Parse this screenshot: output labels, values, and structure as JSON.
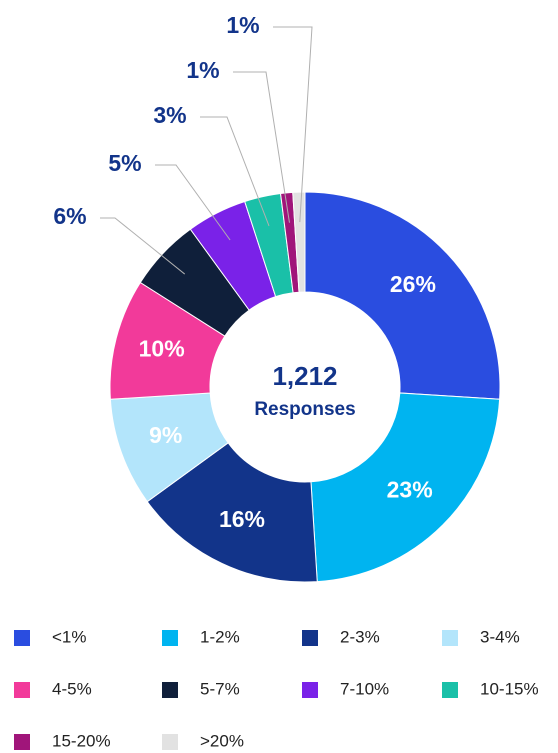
{
  "chart_data": {
    "type": "donut",
    "categories": [
      "<1%",
      "1-2%",
      "2-3%",
      "3-4%",
      "4-5%",
      "5-7%",
      "7-10%",
      "10-15%",
      "15-20%",
      ">20%"
    ],
    "values": [
      26,
      23,
      16,
      9,
      10,
      6,
      5,
      3,
      1,
      1
    ],
    "value_labels": [
      "26%",
      "23%",
      "16%",
      "9%",
      "10%",
      "6%",
      "5%",
      "3%",
      "1%",
      "1%"
    ],
    "colors": [
      "#2a4de0",
      "#00b4f0",
      "#12348a",
      "#b3e5fb",
      "#f23a9a",
      "#0f1f3a",
      "#7a22e8",
      "#1ac0a8",
      "#a0157a",
      "#e2e2e2"
    ],
    "center_label": "1,212",
    "center_sublabel": "Responses",
    "legend": "bottom"
  }
}
